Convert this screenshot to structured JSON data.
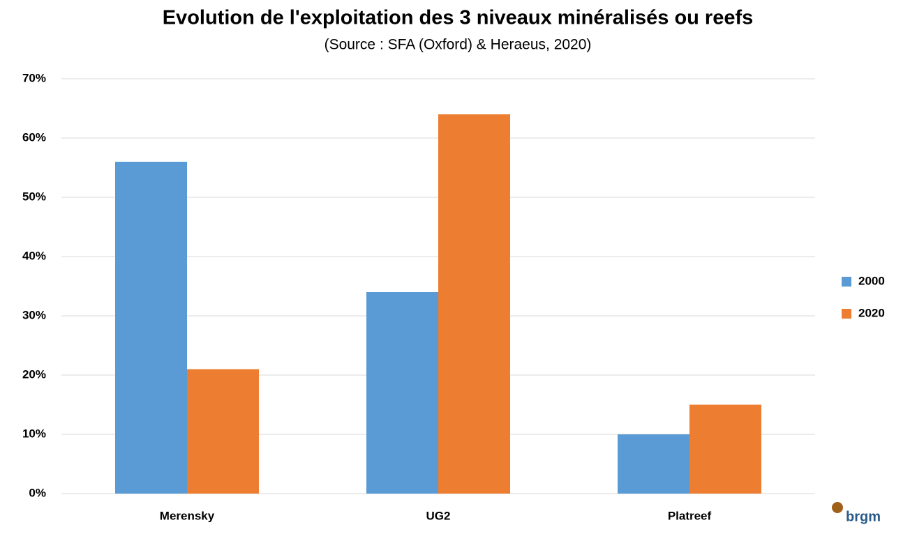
{
  "chart_data": {
    "type": "bar",
    "title": "Evolution de l'exploitation des 3 niveaux minéralisés ou reefs",
    "subtitle": "(Source : SFA (Oxford) & Heraeus, 2020)",
    "categories": [
      "Merensky",
      "UG2",
      "Platreef"
    ],
    "series": [
      {
        "name": "2000",
        "color": "#5b9bd5",
        "values": [
          56,
          34,
          10
        ]
      },
      {
        "name": "2020",
        "color": "#ed7d31",
        "values": [
          21,
          64,
          15
        ]
      }
    ],
    "ylim": [
      0,
      70
    ],
    "yticks": [
      {
        "value": 0,
        "label": "0%"
      },
      {
        "value": 10,
        "label": "10%"
      },
      {
        "value": 20,
        "label": "20%"
      },
      {
        "value": 30,
        "label": "30%"
      },
      {
        "value": 40,
        "label": "40%"
      },
      {
        "value": 50,
        "label": "50%"
      },
      {
        "value": 60,
        "label": "60%"
      },
      {
        "value": 70,
        "label": "70%"
      }
    ],
    "grid": true,
    "legend": "right"
  },
  "logo": "brgm"
}
